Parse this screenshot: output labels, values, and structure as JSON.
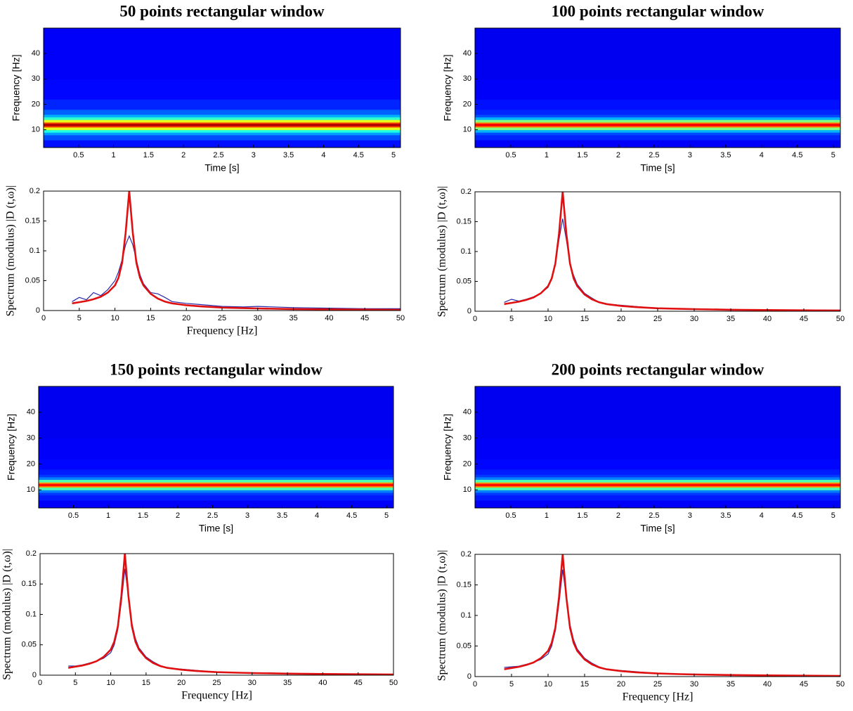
{
  "chart_data": [
    {
      "type": "heatmap",
      "title": "50 points rectangular window",
      "xlabel": "Time [s]",
      "ylabel": "Frequency [Hz]",
      "xlim": [
        0,
        5.1
      ],
      "xticks": [
        0.5,
        1,
        1.5,
        2,
        2.5,
        3,
        3.5,
        4,
        4.5,
        5
      ],
      "ylim": [
        3,
        50
      ],
      "yticks": [
        10,
        20,
        30,
        40
      ],
      "ybins": [
        3,
        6,
        8,
        9,
        10,
        11,
        11.5,
        12.5,
        13,
        14,
        15,
        16,
        18,
        22,
        30,
        50
      ],
      "values": [
        0.14,
        0.2,
        0.28,
        0.4,
        0.6,
        0.8,
        0.95,
        0.8,
        0.6,
        0.42,
        0.3,
        0.22,
        0.16,
        0.13,
        0.12
      ]
    },
    {
      "type": "line",
      "xlabel": "Frequency [Hz]",
      "ylabel": "Spectrum (modulus) |D (t,ω)|",
      "xlim": [
        0,
        50
      ],
      "xticks": [
        0,
        5,
        10,
        15,
        20,
        25,
        30,
        35,
        40,
        45,
        50
      ],
      "ylim": [
        0,
        0.2
      ],
      "yticks": [
        0,
        0.05,
        0.1,
        0.15,
        0.2
      ],
      "x": [
        4,
        5,
        6,
        7,
        8,
        9,
        10,
        10.5,
        11,
        11.5,
        12,
        12.5,
        13,
        13.5,
        14,
        15,
        16,
        17,
        18,
        20,
        22,
        25,
        28,
        30,
        35,
        40,
        45,
        50
      ],
      "series": [
        {
          "color": "#2a2aa8",
          "values": [
            0.015,
            0.022,
            0.018,
            0.03,
            0.025,
            0.035,
            0.05,
            0.065,
            0.085,
            0.11,
            0.125,
            0.11,
            0.085,
            0.06,
            0.045,
            0.03,
            0.028,
            0.022,
            0.015,
            0.012,
            0.01,
            0.007,
            0.006,
            0.007,
            0.005,
            0.004,
            0.003,
            0.003
          ]
        },
        {
          "color": "#e01010",
          "values": [
            0.012,
            0.014,
            0.016,
            0.019,
            0.023,
            0.03,
            0.042,
            0.055,
            0.08,
            0.13,
            0.2,
            0.13,
            0.08,
            0.055,
            0.042,
            0.028,
            0.02,
            0.015,
            0.012,
            0.009,
            0.007,
            0.005,
            0.004,
            0.0035,
            0.0025,
            0.002,
            0.0015,
            0.001
          ]
        }
      ]
    },
    {
      "type": "heatmap",
      "title": "100 points rectangular window",
      "xlabel": "Time [s]",
      "ylabel": "Frequency [Hz]",
      "xlim": [
        0,
        5.1
      ],
      "xticks": [
        0.5,
        1,
        1.5,
        2,
        2.5,
        3,
        3.5,
        4,
        4.5,
        5
      ],
      "ylim": [
        3,
        50
      ],
      "yticks": [
        10,
        20,
        30,
        40
      ],
      "ybins": [
        3,
        6,
        8,
        9,
        10,
        11,
        11.5,
        12.5,
        13,
        14,
        15,
        16,
        18,
        22,
        30,
        50
      ],
      "values": [
        0.12,
        0.16,
        0.2,
        0.3,
        0.5,
        0.75,
        0.88,
        0.75,
        0.5,
        0.3,
        0.2,
        0.16,
        0.14,
        0.12,
        0.11
      ]
    },
    {
      "type": "line",
      "ylabel": "Spectrum (modulus) |D (t,ω)|",
      "xlim": [
        0,
        50
      ],
      "xticks": [
        0,
        5,
        10,
        15,
        20,
        25,
        30,
        35,
        40,
        45,
        50
      ],
      "ylim": [
        0,
        0.2
      ],
      "yticks": [
        0,
        0.05,
        0.1,
        0.15,
        0.2
      ],
      "x": [
        4,
        5,
        6,
        7,
        8,
        9,
        10,
        10.5,
        11,
        11.5,
        12,
        12.5,
        13,
        13.5,
        14,
        15,
        16,
        17,
        18,
        20,
        22,
        25,
        28,
        30,
        35,
        40,
        45,
        50
      ],
      "series": [
        {
          "color": "#2a2aa8",
          "values": [
            0.015,
            0.02,
            0.017,
            0.02,
            0.024,
            0.03,
            0.04,
            0.055,
            0.08,
            0.12,
            0.155,
            0.12,
            0.08,
            0.06,
            0.045,
            0.03,
            0.022,
            0.015,
            0.012,
            0.01,
            0.008,
            0.005,
            0.004,
            0.004,
            0.003,
            0.002,
            0.002,
            0.002
          ]
        },
        {
          "color": "#e01010",
          "values": [
            0.012,
            0.014,
            0.016,
            0.019,
            0.023,
            0.03,
            0.042,
            0.055,
            0.08,
            0.13,
            0.2,
            0.13,
            0.08,
            0.055,
            0.042,
            0.028,
            0.02,
            0.015,
            0.012,
            0.009,
            0.007,
            0.005,
            0.004,
            0.0035,
            0.0025,
            0.002,
            0.0015,
            0.001
          ]
        }
      ]
    },
    {
      "type": "heatmap",
      "title": "150 points rectangular window",
      "xlabel": "Time [s]",
      "ylabel": "Frequency [Hz]",
      "xlim": [
        0,
        5.1
      ],
      "xticks": [
        0.5,
        1,
        1.5,
        2,
        2.5,
        3,
        3.5,
        4,
        4.5,
        5
      ],
      "ylim": [
        3,
        50
      ],
      "yticks": [
        10,
        20,
        30,
        40
      ],
      "ybins": [
        3,
        6,
        8,
        9,
        10,
        11,
        11.5,
        12.5,
        13,
        14,
        15,
        16,
        18,
        22,
        30,
        50
      ],
      "values": [
        0.12,
        0.15,
        0.18,
        0.25,
        0.45,
        0.72,
        0.86,
        0.72,
        0.45,
        0.25,
        0.18,
        0.15,
        0.13,
        0.12,
        0.11
      ]
    },
    {
      "type": "line",
      "xlabel": "Frequency [Hz]",
      "ylabel": "Spectrum (modulus) |D (t,ω)|",
      "xlim": [
        0,
        50
      ],
      "xticks": [
        0,
        5,
        10,
        15,
        20,
        25,
        30,
        35,
        40,
        45,
        50
      ],
      "ylim": [
        0,
        0.2
      ],
      "yticks": [
        0,
        0.05,
        0.1,
        0.15,
        0.2
      ],
      "x": [
        4,
        5,
        6,
        7,
        8,
        9,
        10,
        10.5,
        11,
        11.5,
        12,
        12.5,
        13,
        13.5,
        14,
        15,
        16,
        17,
        18,
        20,
        22,
        25,
        28,
        30,
        35,
        40,
        45,
        50
      ],
      "series": [
        {
          "color": "#2a2aa8",
          "values": [
            0.015,
            0.015,
            0.017,
            0.02,
            0.023,
            0.028,
            0.037,
            0.05,
            0.075,
            0.12,
            0.175,
            0.13,
            0.085,
            0.06,
            0.045,
            0.03,
            0.022,
            0.016,
            0.012,
            0.01,
            0.008,
            0.005,
            0.004,
            0.004,
            0.003,
            0.002,
            0.002,
            0.001
          ]
        },
        {
          "color": "#e01010",
          "values": [
            0.012,
            0.014,
            0.016,
            0.019,
            0.023,
            0.03,
            0.042,
            0.055,
            0.08,
            0.13,
            0.2,
            0.13,
            0.08,
            0.055,
            0.042,
            0.028,
            0.02,
            0.015,
            0.012,
            0.009,
            0.007,
            0.005,
            0.004,
            0.0035,
            0.0025,
            0.002,
            0.0015,
            0.001
          ]
        }
      ]
    },
    {
      "type": "heatmap",
      "title": "200 points rectangular window",
      "xlabel": "Time [s]",
      "ylabel": "Frequency [Hz]",
      "xlim": [
        0,
        5.1
      ],
      "xticks": [
        0.5,
        1,
        1.5,
        2,
        2.5,
        3,
        3.5,
        4,
        4.5,
        5
      ],
      "ylim": [
        3,
        50
      ],
      "yticks": [
        10,
        20,
        30,
        40
      ],
      "ybins": [
        3,
        6,
        8,
        9,
        10,
        11,
        11.5,
        12.5,
        13,
        14,
        15,
        16,
        18,
        22,
        30,
        50
      ],
      "values": [
        0.12,
        0.15,
        0.18,
        0.25,
        0.45,
        0.72,
        0.86,
        0.72,
        0.45,
        0.25,
        0.18,
        0.15,
        0.13,
        0.12,
        0.11
      ]
    },
    {
      "type": "line",
      "xlabel": "Frequency [Hz]",
      "ylabel": "Spectrum (modulus) |D (t,ω)|",
      "xlim": [
        0,
        50
      ],
      "xticks": [
        0,
        5,
        10,
        15,
        20,
        25,
        30,
        35,
        40,
        45,
        50
      ],
      "ylim": [
        0,
        0.2
      ],
      "yticks": [
        0,
        0.05,
        0.1,
        0.15,
        0.2
      ],
      "x": [
        4,
        5,
        6,
        7,
        8,
        9,
        10,
        10.5,
        11,
        11.5,
        12,
        12.5,
        13,
        13.5,
        14,
        15,
        16,
        17,
        18,
        20,
        22,
        25,
        28,
        30,
        35,
        40,
        45,
        50
      ],
      "series": [
        {
          "color": "#2a2aa8",
          "values": [
            0.015,
            0.016,
            0.017,
            0.02,
            0.023,
            0.028,
            0.037,
            0.05,
            0.075,
            0.12,
            0.175,
            0.13,
            0.085,
            0.06,
            0.045,
            0.03,
            0.022,
            0.016,
            0.012,
            0.01,
            0.008,
            0.005,
            0.004,
            0.004,
            0.003,
            0.002,
            0.002,
            0.001
          ]
        },
        {
          "color": "#e01010",
          "values": [
            0.012,
            0.014,
            0.016,
            0.019,
            0.023,
            0.03,
            0.042,
            0.055,
            0.08,
            0.13,
            0.2,
            0.13,
            0.08,
            0.055,
            0.042,
            0.028,
            0.02,
            0.015,
            0.012,
            0.009,
            0.007,
            0.005,
            0.004,
            0.0035,
            0.0025,
            0.002,
            0.0015,
            0.001
          ]
        }
      ]
    }
  ]
}
